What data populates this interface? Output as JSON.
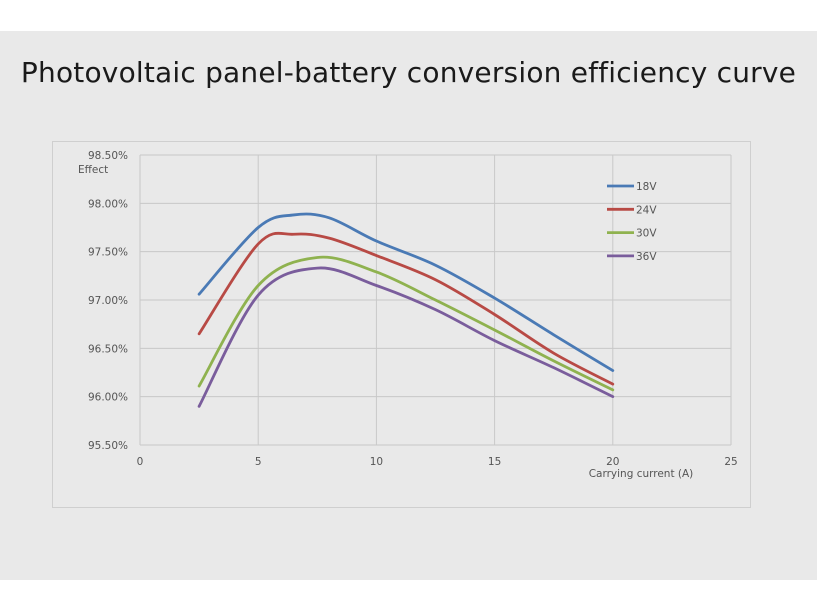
{
  "chart_data": {
    "type": "line",
    "title": "Photovoltaic panel-battery conversion efficiency curve",
    "xlabel": "Carrying current (A)",
    "ylabel": "Effect",
    "xlim": [
      0,
      25
    ],
    "ylim": [
      95.5,
      98.5
    ],
    "x_ticks": [
      "0",
      "5",
      "10",
      "15",
      "20",
      "25"
    ],
    "y_ticks": [
      "98.50%",
      "98.00%",
      "97.50%",
      "97.00%",
      "96.50%",
      "96.00%",
      "95.50%"
    ],
    "grid": true,
    "legend_position": "top-right",
    "series": [
      {
        "name": "18V",
        "color": "#4a7ab5",
        "x": [
          2.5,
          5,
          6.5,
          8,
          10,
          12.5,
          15,
          17.5,
          20
        ],
        "values": [
          97.06,
          97.75,
          97.88,
          97.85,
          97.61,
          97.36,
          97.02,
          96.64,
          96.27
        ]
      },
      {
        "name": "24V",
        "color": "#b84a45",
        "x": [
          2.5,
          5,
          6.5,
          8,
          10,
          12.5,
          15,
          17.5,
          20
        ],
        "values": [
          96.65,
          97.58,
          97.68,
          97.64,
          97.46,
          97.21,
          96.85,
          96.45,
          96.13
        ]
      },
      {
        "name": "30V",
        "color": "#8fb24f",
        "x": [
          2.5,
          5,
          7.5,
          10,
          12.5,
          15,
          17.5,
          20
        ],
        "values": [
          96.11,
          97.15,
          97.44,
          97.29,
          97.0,
          96.69,
          96.37,
          96.07
        ]
      },
      {
        "name": "36V",
        "color": "#7a5d9c",
        "x": [
          2.5,
          5,
          7.5,
          10,
          12.5,
          15,
          17.5,
          20
        ],
        "values": [
          95.9,
          97.05,
          97.33,
          97.15,
          96.9,
          96.58,
          96.3,
          96.0
        ]
      }
    ]
  },
  "colors": {
    "background": "#e9e9e9",
    "grid": "#c8c8c8"
  }
}
